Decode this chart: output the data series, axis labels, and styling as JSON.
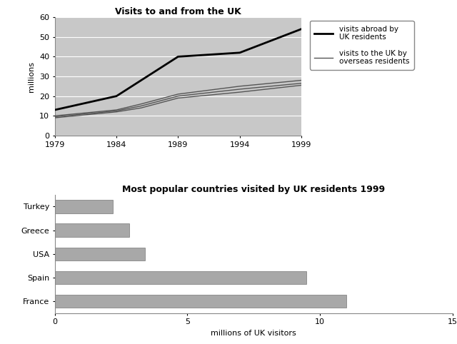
{
  "line_years": [
    1979,
    1984,
    1986,
    1989,
    1994,
    1999
  ],
  "visits_abroad": [
    13,
    20,
    28,
    40,
    42,
    54
  ],
  "visits_to_uk_upper": [
    10,
    13,
    16,
    21,
    25,
    28
  ],
  "visits_to_uk_mid": [
    9.5,
    12.5,
    15,
    20,
    23.5,
    26.5
  ],
  "visits_to_uk_lower": [
    9,
    12,
    14,
    19,
    22,
    25.5
  ],
  "line_title": "Visits to and from the UK",
  "line_ylabel": "millions",
  "line_ylim": [
    0,
    60
  ],
  "line_xticks": [
    1979,
    1984,
    1989,
    1994,
    1999
  ],
  "legend_abroad": "visits abroad by\nUK residents",
  "legend_to_uk": "visits to the UK by\noverseas residents",
  "bar_countries": [
    "Turkey",
    "Greece",
    "USA",
    "Spain",
    "France"
  ],
  "bar_values": [
    2.2,
    2.8,
    3.4,
    9.5,
    11.0
  ],
  "bar_title": "Most popular countries visited by UK residents 1999",
  "bar_xlabel": "millions of UK visitors",
  "bar_xlim": [
    0,
    15
  ],
  "bar_color": "#a8a8a8",
  "bar_xticks": [
    0,
    5,
    10,
    15
  ],
  "bg_color": "#c8c8c8",
  "line_color_abroad": "#000000",
  "line_color_to_uk": "#555555",
  "line_lw_abroad": 2.0,
  "line_lw_to_uk": 1.0
}
